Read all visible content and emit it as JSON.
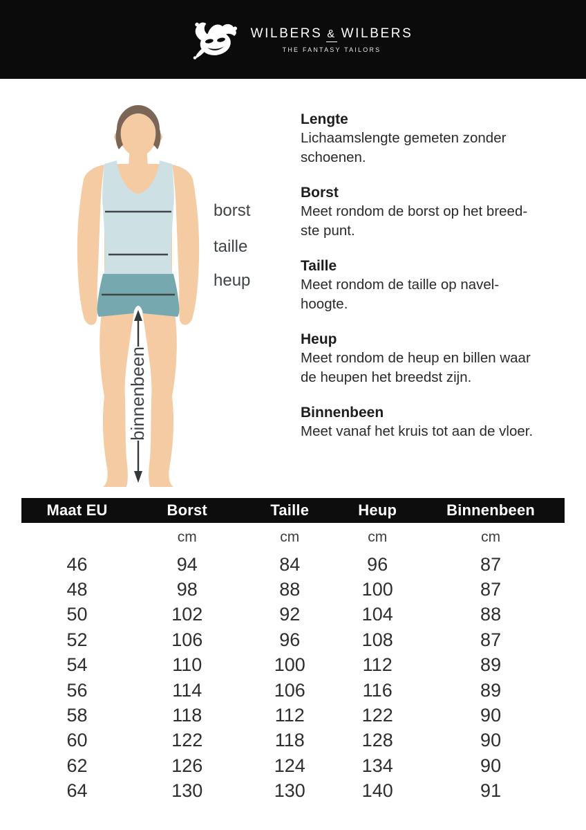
{
  "brand": {
    "name_left": "WILBERS",
    "ampersand": "&",
    "name_right": "WILBERS",
    "tagline": "THE FANTASY TAILORS"
  },
  "figure": {
    "labels": {
      "chest": "borst",
      "waist": "taille",
      "hip": "heup",
      "inseam": "binnenbeen"
    }
  },
  "instructions": [
    {
      "title": "Lengte",
      "lines": [
        "Lichaamslengte gemeten zonder",
        "schoenen."
      ]
    },
    {
      "title": "Borst",
      "lines": [
        "Meet rondom de borst op het breed-",
        "ste punt."
      ]
    },
    {
      "title": "Taille",
      "lines": [
        "Meet rondom de taille op navel-",
        "hoogte."
      ]
    },
    {
      "title": "Heup",
      "lines": [
        "Meet rondom de heup en billen waar",
        "de heupen het breedst zijn."
      ]
    },
    {
      "title": "Binnenbeen",
      "lines": [
        "Meet vanaf het kruis tot aan de vloer."
      ]
    }
  ],
  "size_table": {
    "headers": [
      "Maat EU",
      "Borst",
      "Taille",
      "Heup",
      "Binnenbeen"
    ],
    "units": [
      "",
      "cm",
      "cm",
      "cm",
      "cm"
    ],
    "rows": [
      [
        "46",
        "94",
        "84",
        "96",
        "87"
      ],
      [
        "48",
        "98",
        "88",
        "100",
        "87"
      ],
      [
        "50",
        "102",
        "92",
        "104",
        "88"
      ],
      [
        "52",
        "106",
        "96",
        "108",
        "87"
      ],
      [
        "54",
        "110",
        "100",
        "112",
        "89"
      ],
      [
        "56",
        "114",
        "106",
        "116",
        "89"
      ],
      [
        "58",
        "118",
        "112",
        "122",
        "90"
      ],
      [
        "60",
        "122",
        "118",
        "128",
        "90"
      ],
      [
        "62",
        "126",
        "124",
        "134",
        "90"
      ],
      [
        "64",
        "130",
        "130",
        "140",
        "91"
      ]
    ]
  },
  "colors": {
    "header_bg": "#0B0B0B",
    "table_header_bg": "#0D0D0D",
    "skin": "#F5CBA3",
    "hair": "#7B6656",
    "tank_top": "#CDE0E4",
    "shorts": "#76A8AF",
    "measure_line": "#3F4447",
    "text": "#2A2A2A"
  }
}
